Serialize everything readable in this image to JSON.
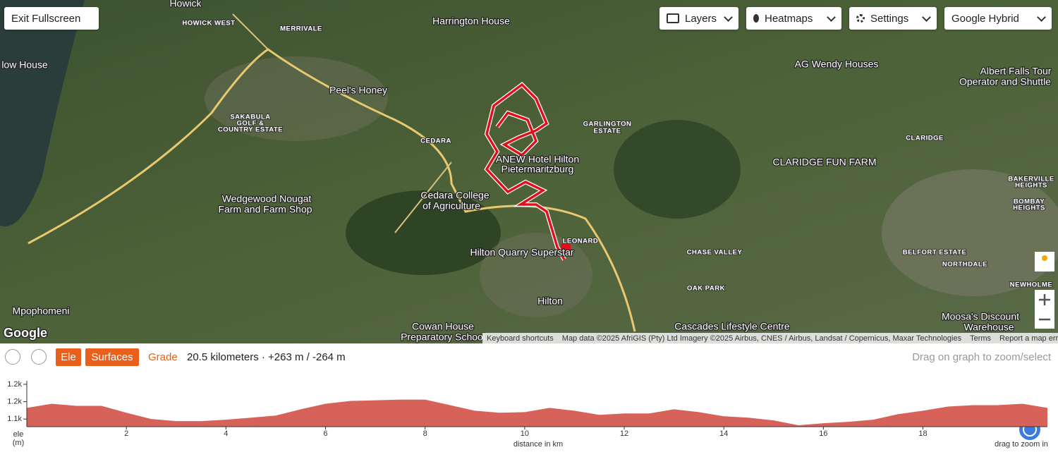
{
  "toolbar": {
    "exit": "Exit Fullscreen",
    "layers": "Layers",
    "heatmaps": "Heatmaps",
    "settings": "Settings",
    "basemap": "Google Hybrid"
  },
  "map": {
    "labels": [
      "Howick",
      "HOWICK WEST",
      "MERRIVALE",
      "Harrington House",
      "low House",
      "Peel's Honey",
      "SAKABULA",
      "GOLF &",
      "COUNTRY ESTATE",
      "CEDARA",
      "GARLINGTON",
      "ESTATE",
      "AG Wendy Houses",
      "Albert Falls Tour",
      "Operator and Shuttle",
      "CLARIDGE",
      "CLARIDGE FUN FARM",
      "ANEW Hotel Hilton",
      "Pietermaritzburg",
      "Wedgewood Nougat",
      "Farm and Farm Shop",
      "Cedara College",
      "of Agriculture",
      "BAKERVILLE",
      "HEIGHTS",
      "BOMBAY",
      "HEIGHTS",
      "LEONARD",
      "Hilton Quarry Superstar",
      "CHASE VALLEY",
      "BELFORT ESTATE",
      "NORTHDALE",
      "OAK PARK",
      "NEWHOLME",
      "Hilton",
      "Mpophomeni",
      "Cowan House",
      "Preparatory School",
      "Cascades Lifestyle Centre",
      "Moosa's Discount",
      "Warehouse",
      "Google"
    ],
    "attribution": {
      "shortcuts": "Keyboard shortcuts",
      "data": "Map data ©2025 AfriGIS (Pty) Ltd Imagery ©2025 Airbus, CNES / Airbus, Landsat / Copernicus, Maxar Technologies",
      "terms": "Terms",
      "report": "Report a map error"
    }
  },
  "panel": {
    "ele": "Ele",
    "surfaces": "Surfaces",
    "grade": "Grade",
    "summary": "20.5 kilometers · +263 m / -264 m",
    "hint": "Drag on graph to zoom/select",
    "y_label": [
      "ele",
      "(m)"
    ],
    "zoom_hint": "drag to zoom in"
  },
  "chart_data": {
    "type": "area",
    "x_label": "distance in km",
    "x": [
      0,
      0.5,
      1,
      1.5,
      2,
      2.5,
      3,
      3.5,
      4,
      4.5,
      5,
      5.5,
      6,
      6.5,
      7,
      7.5,
      8,
      8.5,
      9,
      9.5,
      10,
      10.5,
      11,
      11.5,
      12,
      12.5,
      13,
      13.5,
      14,
      14.5,
      15,
      15.5,
      16,
      16.5,
      17,
      17.5,
      18,
      18.5,
      19,
      19.5,
      20,
      20.5
    ],
    "series": [
      {
        "name": "ele",
        "color": "#d7625a",
        "values": [
          1132,
          1144,
          1138,
          1138,
          1118,
          1100,
          1094,
          1094,
          1098,
          1104,
          1110,
          1128,
          1144,
          1152,
          1154,
          1156,
          1156,
          1140,
          1124,
          1118,
          1120,
          1132,
          1124,
          1112,
          1116,
          1116,
          1128,
          1120,
          1108,
          1104,
          1096,
          1082,
          1088,
          1092,
          1098,
          1114,
          1124,
          1136,
          1140,
          1140,
          1144,
          1132
        ]
      }
    ],
    "xlim": [
      0,
      20.5
    ],
    "xticks": [
      2,
      4,
      6,
      8,
      10,
      12,
      14,
      16,
      18
    ],
    "ylim": [
      1078,
      1210
    ],
    "yticks": [
      {
        "value": 1100,
        "label": "1.1k"
      },
      {
        "value": 1150,
        "label": "1.2k"
      },
      {
        "value": 1200,
        "label": "1.2k"
      }
    ]
  }
}
